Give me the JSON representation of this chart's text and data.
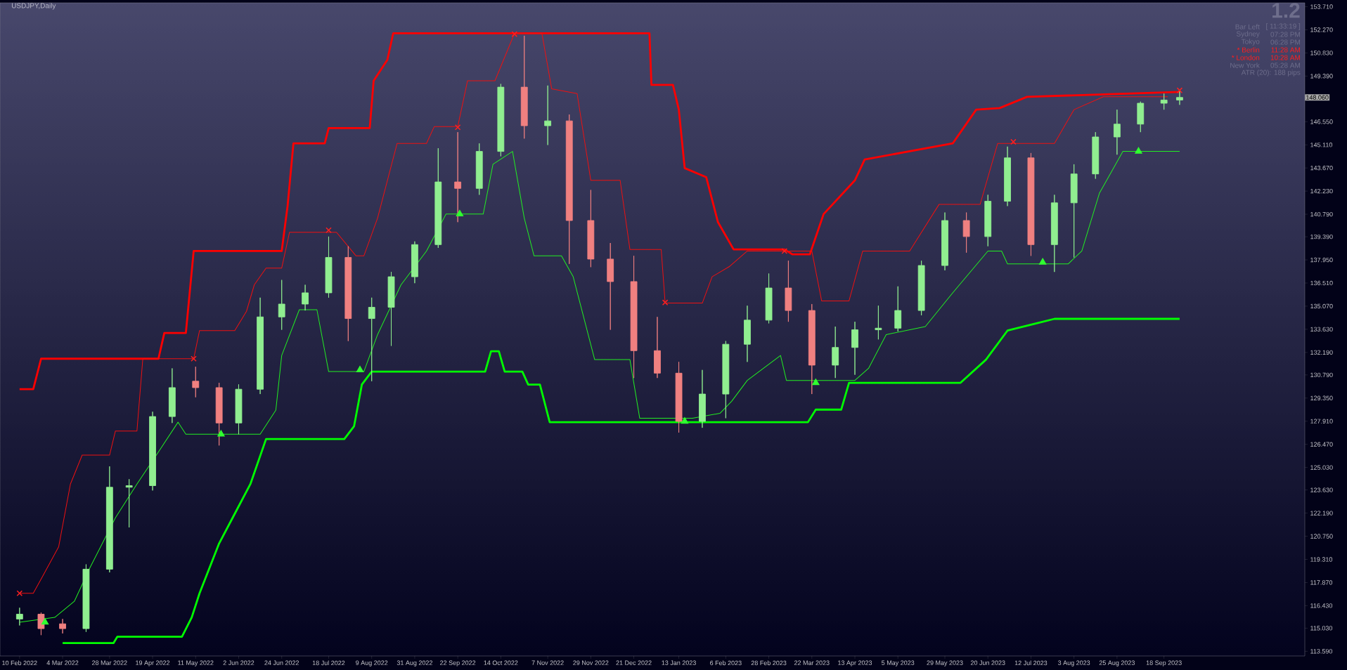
{
  "chart_data": {
    "type": "candlestick",
    "title": "USDJPY,Daily",
    "x": [
      "2022-02-10",
      "2022-02-21",
      "2022-03-04",
      "2022-03-16",
      "2022-03-28",
      "2022-04-07",
      "2022-04-19",
      "2022-04-29",
      "2022-05-11",
      "2022-05-23",
      "2022-06-02",
      "2022-06-13",
      "2022-06-24",
      "2022-07-06",
      "2022-07-18",
      "2022-07-28",
      "2022-08-09",
      "2022-08-19",
      "2022-08-31",
      "2022-09-12",
      "2022-09-22",
      "2022-10-03",
      "2022-10-14",
      "2022-10-26",
      "2022-11-07",
      "2022-11-18",
      "2022-11-29",
      "2022-12-09",
      "2022-12-21",
      "2023-01-02",
      "2023-01-13",
      "2023-01-25",
      "2023-02-06",
      "2023-02-17",
      "2023-02-28",
      "2023-03-10",
      "2023-03-22",
      "2023-04-03",
      "2023-04-13",
      "2023-04-25",
      "2023-05-05",
      "2023-05-17",
      "2023-05-29",
      "2023-06-09",
      "2023-06-20",
      "2023-06-30",
      "2023-07-12",
      "2023-07-24",
      "2023-08-03",
      "2023-08-14",
      "2023-08-25",
      "2023-09-06",
      "2023-09-18",
      "2023-09-26"
    ],
    "ohlc": [
      [
        115.6,
        116.3,
        115.2,
        115.9
      ],
      [
        115.9,
        116.0,
        114.6,
        115.0
      ],
      [
        115.3,
        115.6,
        114.7,
        115.0
      ],
      [
        115.0,
        119.0,
        114.8,
        118.7
      ],
      [
        118.7,
        125.1,
        118.5,
        123.8
      ],
      [
        123.8,
        124.3,
        121.3,
        123.9
      ],
      [
        123.9,
        128.5,
        123.6,
        128.2
      ],
      [
        128.2,
        131.2,
        127.8,
        130.0
      ],
      [
        130.4,
        131.3,
        129.4,
        130.0
      ],
      [
        130.0,
        130.3,
        126.4,
        127.8
      ],
      [
        127.8,
        130.2,
        127.1,
        129.9
      ],
      [
        129.9,
        135.6,
        129.6,
        134.4
      ],
      [
        134.4,
        136.7,
        133.6,
        135.2
      ],
      [
        135.2,
        136.4,
        134.8,
        135.9
      ],
      [
        135.9,
        139.4,
        135.6,
        138.1
      ],
      [
        138.1,
        138.8,
        132.9,
        134.3
      ],
      [
        134.3,
        135.6,
        130.4,
        135.0
      ],
      [
        135.0,
        137.2,
        132.6,
        136.9
      ],
      [
        136.9,
        139.1,
        136.5,
        138.9
      ],
      [
        138.9,
        144.9,
        138.7,
        142.8
      ],
      [
        142.8,
        145.9,
        140.3,
        142.4
      ],
      [
        142.4,
        145.2,
        142.0,
        144.7
      ],
      [
        144.7,
        148.9,
        144.4,
        148.7
      ],
      [
        148.7,
        151.9,
        145.5,
        146.3
      ],
      [
        146.3,
        148.8,
        145.1,
        146.6
      ],
      [
        146.6,
        147.0,
        137.7,
        140.4
      ],
      [
        140.4,
        142.3,
        137.5,
        138.0
      ],
      [
        138.0,
        139.0,
        133.6,
        136.6
      ],
      [
        136.6,
        138.2,
        130.6,
        132.3
      ],
      [
        132.3,
        134.4,
        130.6,
        130.9
      ],
      [
        130.9,
        131.6,
        127.2,
        127.9
      ],
      [
        127.9,
        131.1,
        127.5,
        129.6
      ],
      [
        129.6,
        132.9,
        128.1,
        132.7
      ],
      [
        132.7,
        135.1,
        131.6,
        134.2
      ],
      [
        134.2,
        137.1,
        134.0,
        136.2
      ],
      [
        136.2,
        137.9,
        134.1,
        134.8
      ],
      [
        134.8,
        135.2,
        129.6,
        131.4
      ],
      [
        131.4,
        133.8,
        130.6,
        132.5
      ],
      [
        132.5,
        134.1,
        130.8,
        133.6
      ],
      [
        133.6,
        135.1,
        133.0,
        133.7
      ],
      [
        133.7,
        136.3,
        133.5,
        134.8
      ],
      [
        134.8,
        137.9,
        134.5,
        137.6
      ],
      [
        137.6,
        140.9,
        137.3,
        140.4
      ],
      [
        140.4,
        140.9,
        138.4,
        139.4
      ],
      [
        139.4,
        142.0,
        138.8,
        141.6
      ],
      [
        141.6,
        145.0,
        141.3,
        144.3
      ],
      [
        144.3,
        144.6,
        138.2,
        138.9
      ],
      [
        138.9,
        142.0,
        137.2,
        141.5
      ],
      [
        141.5,
        143.9,
        138.1,
        143.3
      ],
      [
        143.3,
        145.9,
        143.0,
        145.6
      ],
      [
        145.6,
        147.3,
        144.5,
        146.4
      ],
      [
        146.4,
        147.8,
        145.9,
        147.7
      ],
      [
        147.7,
        148.3,
        147.3,
        147.9
      ],
      [
        147.9,
        148.5,
        147.6,
        148.06
      ]
    ],
    "colors": [
      "#90ee90",
      "#f08080",
      "#f08080",
      "#90ee90",
      "#90ee90",
      "#90ee90",
      "#90ee90",
      "#90ee90",
      "#f08080",
      "#f08080",
      "#90ee90",
      "#90ee90",
      "#90ee90",
      "#90ee90",
      "#90ee90",
      "#f08080",
      "#90ee90",
      "#90ee90",
      "#90ee90",
      "#90ee90",
      "#f08080",
      "#90ee90",
      "#90ee90",
      "#f08080",
      "#90ee90",
      "#f08080",
      "#f08080",
      "#f08080",
      "#f08080",
      "#f08080",
      "#f08080",
      "#90ee90",
      "#90ee90",
      "#90ee90",
      "#90ee90",
      "#f08080",
      "#f08080",
      "#90ee90",
      "#90ee90",
      "#90ee90",
      "#90ee90",
      "#90ee90",
      "#90ee90",
      "#f08080",
      "#90ee90",
      "#90ee90",
      "#f08080",
      "#90ee90",
      "#90ee90",
      "#90ee90",
      "#90ee90",
      "#90ee90",
      "#90ee90",
      "#90ee90"
    ],
    "series": [
      {
        "type": "line",
        "color": "#ff0000",
        "x": [
          "2022-02-10",
          "2022-02-17",
          "2022-02-21",
          "2022-04-22",
          "2022-04-25",
          "2022-05-06",
          "2022-05-10",
          "2022-06-24",
          "2022-06-27",
          "2022-06-30",
          "2022-07-16",
          "2022-07-18",
          "2022-08-08",
          "2022-08-10",
          "2022-08-17",
          "2022-08-20",
          "2022-12-29",
          "2022-12-30",
          "2023-01-10",
          "2023-01-13",
          "2023-01-16",
          "2023-01-27",
          "2023-02-02",
          "2023-02-10",
          "2023-03-08",
          "2023-03-12",
          "2023-03-21",
          "2023-03-28",
          "2023-04-13",
          "2023-04-18",
          "2023-06-02",
          "2023-06-14",
          "2023-06-26",
          "2023-07-10",
          "2023-09-26"
        ],
        "values": [
          129.9,
          129.9,
          131.8,
          131.8,
          133.4,
          133.4,
          138.5,
          138.5,
          141.3,
          145.2,
          145.2,
          146.15,
          146.15,
          149.1,
          150.4,
          152.05,
          152.05,
          148.84,
          148.84,
          147.3,
          143.66,
          143.1,
          140.3,
          138.6,
          138.6,
          138.3,
          138.3,
          140.8,
          142.9,
          144.2,
          145.2,
          147.3,
          147.4,
          148.1,
          148.4
        ]
      },
      {
        "type": "line",
        "color": "#ee1111",
        "x": [
          "2022-02-10",
          "2022-02-17",
          "2022-02-22",
          "2022-03-02",
          "2022-03-08",
          "2022-03-14",
          "2022-03-28",
          "2022-03-31",
          "2022-04-11",
          "2022-04-14",
          "2022-05-10",
          "2022-05-13",
          "2022-05-31",
          "2022-06-06",
          "2022-06-10",
          "2022-06-16",
          "2022-06-24",
          "2022-06-28",
          "2022-07-22",
          "2022-08-01",
          "2022-08-05",
          "2022-08-12",
          "2022-08-22",
          "2022-09-06",
          "2022-09-10",
          "2022-09-22",
          "2022-09-27",
          "2022-10-11",
          "2022-10-21",
          "2022-11-04",
          "2022-11-09",
          "2022-11-22",
          "2022-11-29",
          "2022-12-14",
          "2022-12-19",
          "2023-01-04",
          "2023-01-06",
          "2023-01-25",
          "2023-01-30",
          "2023-02-08",
          "2023-02-17",
          "2023-03-22",
          "2023-03-27",
          "2023-04-10",
          "2023-04-17",
          "2023-05-11",
          "2023-05-26",
          "2023-06-16",
          "2023-06-25",
          "2023-07-24",
          "2023-08-03",
          "2023-08-18",
          "2023-09-20"
        ],
        "values": [
          117.2,
          117.2,
          118.3,
          120.1,
          124.0,
          125.8,
          125.8,
          127.3,
          127.3,
          131.8,
          131.8,
          133.55,
          133.55,
          134.75,
          136.4,
          137.44,
          137.44,
          139.67,
          139.67,
          138.2,
          138.2,
          140.55,
          145.2,
          145.2,
          146.25,
          146.25,
          149.1,
          149.1,
          152.05,
          152.05,
          148.6,
          148.3,
          142.9,
          142.9,
          138.6,
          138.6,
          135.26,
          135.26,
          136.9,
          137.55,
          138.5,
          138.5,
          135.4,
          135.4,
          138.5,
          138.5,
          141.4,
          141.4,
          145.2,
          145.2,
          147.3,
          148.1,
          148.1
        ]
      },
      {
        "type": "line",
        "color": "#22ee22",
        "x": [
          "2022-02-10",
          "2022-02-28",
          "2022-03-10",
          "2022-03-18",
          "2022-03-31",
          "2022-04-11",
          "2022-04-22",
          "2022-05-02",
          "2022-05-06",
          "2022-06-13",
          "2022-06-21",
          "2022-06-24",
          "2022-07-03",
          "2022-07-12",
          "2022-07-18",
          "2022-08-05",
          "2022-08-12",
          "2022-08-24",
          "2022-09-06",
          "2022-09-16",
          "2022-10-05",
          "2022-10-10",
          "2022-10-20",
          "2022-10-26",
          "2022-10-31",
          "2022-11-14",
          "2022-11-20",
          "2022-12-01",
          "2022-12-19",
          "2022-12-24",
          "2023-01-20",
          "2023-02-03",
          "2023-02-09",
          "2023-02-17",
          "2023-03-06",
          "2023-03-09",
          "2023-04-13",
          "2023-04-20",
          "2023-04-29",
          "2023-05-19",
          "2023-06-02",
          "2023-06-20",
          "2023-06-27",
          "2023-06-30",
          "2023-07-31",
          "2023-08-07",
          "2023-08-16",
          "2023-08-28",
          "2023-09-26"
        ],
        "values": [
          115.4,
          115.7,
          116.7,
          118.8,
          121.9,
          124.0,
          126.0,
          127.85,
          127.1,
          127.1,
          128.6,
          132.0,
          134.85,
          134.85,
          131.0,
          131.0,
          133.3,
          136.4,
          138.5,
          140.8,
          140.8,
          143.9,
          144.7,
          140.55,
          138.2,
          138.2,
          136.9,
          131.74,
          131.74,
          128.1,
          128.1,
          128.4,
          129.15,
          130.45,
          132.0,
          130.45,
          130.45,
          131.2,
          133.3,
          133.8,
          135.9,
          138.5,
          138.5,
          137.7,
          137.7,
          138.5,
          142.1,
          144.7,
          144.7
        ]
      },
      {
        "type": "line",
        "color": "#00ff00",
        "x": [
          "2022-03-04",
          "2022-03-30",
          "2022-04-01",
          "2022-05-04",
          "2022-05-09",
          "2022-05-13",
          "2022-05-23",
          "2022-05-31",
          "2022-06-08",
          "2022-06-16",
          "2022-07-26",
          "2022-07-31",
          "2022-08-04",
          "2022-08-09",
          "2022-10-06",
          "2022-10-09",
          "2022-10-13",
          "2022-10-16",
          "2022-10-25",
          "2022-10-28",
          "2022-11-03",
          "2022-11-08",
          "2023-03-20",
          "2023-03-24",
          "2023-04-06",
          "2023-04-10",
          "2023-06-06",
          "2023-06-19",
          "2023-06-30",
          "2023-07-17",
          "2023-07-24",
          "2023-09-26"
        ],
        "values": [
          114.1,
          114.1,
          114.5,
          114.5,
          115.7,
          117.2,
          120.3,
          122.15,
          124.0,
          126.8,
          126.8,
          127.6,
          130.2,
          131.0,
          131.0,
          132.26,
          132.26,
          131.0,
          131.0,
          130.19,
          130.19,
          127.85,
          127.85,
          128.63,
          128.63,
          130.3,
          130.3,
          131.74,
          133.55,
          134.07,
          134.28,
          134.28
        ]
      },
      {
        "type": "scatter",
        "color": "#ff2020",
        "marker": "cross",
        "x": [
          "2022-02-10",
          "2022-05-10",
          "2022-07-18",
          "2022-09-22",
          "2022-10-21",
          "2023-01-06",
          "2023-03-08",
          "2023-07-03",
          "2023-09-26"
        ],
        "values": [
          117.2,
          131.8,
          139.8,
          146.2,
          152.0,
          135.3,
          138.5,
          145.3,
          148.5
        ]
      },
      {
        "type": "scatter",
        "color": "#30ff30",
        "marker": "triangle",
        "x": [
          "2022-02-23",
          "2022-05-24",
          "2022-08-03",
          "2022-09-23",
          "2023-01-16",
          "2023-03-24",
          "2023-07-18",
          "2023-09-05"
        ],
        "values": [
          115.4,
          127.1,
          131.1,
          140.8,
          127.9,
          130.3,
          137.8,
          144.7
        ]
      }
    ],
    "xlim": [
      "2022-01-31",
      "2023-11-29"
    ],
    "xticks": [
      {
        "value": "2022-02-10",
        "label": "10 Feb 2022"
      },
      {
        "value": "2022-03-04",
        "label": "4 Mar 2022"
      },
      {
        "value": "2022-03-28",
        "label": "28 Mar 2022"
      },
      {
        "value": "2022-04-19",
        "label": "19 Apr 2022"
      },
      {
        "value": "2022-05-11",
        "label": "11 May 2022"
      },
      {
        "value": "2022-06-02",
        "label": "2 Jun 2022"
      },
      {
        "value": "2022-06-24",
        "label": "24 Jun 2022"
      },
      {
        "value": "2022-07-18",
        "label": "18 Jul 2022"
      },
      {
        "value": "2022-08-09",
        "label": "9 Aug 2022"
      },
      {
        "value": "2022-08-31",
        "label": "31 Aug 2022"
      },
      {
        "value": "2022-09-22",
        "label": "22 Sep 2022"
      },
      {
        "value": "2022-10-14",
        "label": "14 Oct 2022"
      },
      {
        "value": "2022-11-07",
        "label": "7 Nov 2022"
      },
      {
        "value": "2022-11-29",
        "label": "29 Nov 2022"
      },
      {
        "value": "2022-12-21",
        "label": "21 Dec 2022"
      },
      {
        "value": "2023-01-13",
        "label": "13 Jan 2023"
      },
      {
        "value": "2023-02-06",
        "label": "6 Feb 2023"
      },
      {
        "value": "2023-02-28",
        "label": "28 Feb 2023"
      },
      {
        "value": "2023-03-22",
        "label": "22 Mar 2023"
      },
      {
        "value": "2023-04-13",
        "label": "13 Apr 2023"
      },
      {
        "value": "2023-05-05",
        "label": "5 May 2023"
      },
      {
        "value": "2023-05-29",
        "label": "29 May 2023"
      },
      {
        "value": "2023-06-20",
        "label": "20 Jun 2023"
      },
      {
        "value": "2023-07-12",
        "label": "12 Jul 2023"
      },
      {
        "value": "2023-08-03",
        "label": "3 Aug 2023"
      },
      {
        "value": "2023-08-25",
        "label": "25 Aug 2023"
      },
      {
        "value": "2023-09-18",
        "label": "18 Sep 2023"
      }
    ],
    "ylim": [
      113.3,
      153.95
    ],
    "yticks": [
      {
        "value": 153.71,
        "label": "153.710"
      },
      {
        "value": 152.27,
        "label": "152.270"
      },
      {
        "value": 150.83,
        "label": "150.830"
      },
      {
        "value": 149.39,
        "label": "149.390"
      },
      {
        "value": 146.55,
        "label": "146.550"
      },
      {
        "value": 145.11,
        "label": "145.110"
      },
      {
        "value": 143.67,
        "label": "143.670"
      },
      {
        "value": 142.23,
        "label": "142.230"
      },
      {
        "value": 140.79,
        "label": "140.790"
      },
      {
        "value": 139.39,
        "label": "139.390"
      },
      {
        "value": 137.95,
        "label": "137.950"
      },
      {
        "value": 136.51,
        "label": "136.510"
      },
      {
        "value": 135.07,
        "label": "135.070"
      },
      {
        "value": 133.63,
        "label": "133.630"
      },
      {
        "value": 132.19,
        "label": "132.190"
      },
      {
        "value": 130.79,
        "label": "130.790"
      },
      {
        "value": 129.35,
        "label": "129.350"
      },
      {
        "value": 127.91,
        "label": "127.910"
      },
      {
        "value": 126.47,
        "label": "126.470"
      },
      {
        "value": 125.03,
        "label": "125.030"
      },
      {
        "value": 123.63,
        "label": "123.630"
      },
      {
        "value": 122.19,
        "label": "122.190"
      },
      {
        "value": 120.75,
        "label": "120.750"
      },
      {
        "value": 119.31,
        "label": "119.310"
      },
      {
        "value": 117.87,
        "label": "117.870"
      },
      {
        "value": 116.43,
        "label": "116.430"
      },
      {
        "value": 115.03,
        "label": "115.030"
      },
      {
        "value": 113.59,
        "label": "113.590"
      }
    ],
    "annotations": [
      "1.2",
      "Bar Left",
      "[ 11:33:19 ]",
      "Sydney",
      "07:28 PM",
      "Tokyo",
      "06:28 PM",
      "* Berlin",
      "11:28 AM",
      "* London",
      "10:28 AM",
      "New York",
      "05:28 AM",
      "ATR (20): 188 pips",
      "148.060"
    ]
  }
}
